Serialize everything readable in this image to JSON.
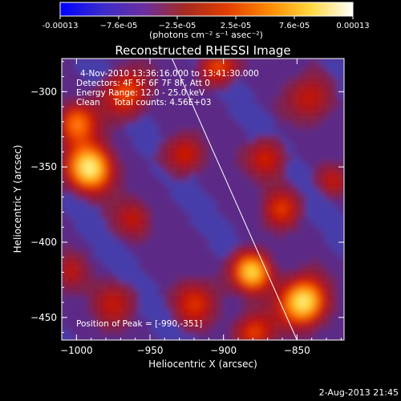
{
  "chart_data": {
    "type": "heatmap",
    "title": "Reconstructed RHESSI Image",
    "colorbar": {
      "tick_labels": [
        "-0.00013",
        "−7.6e-05",
        "−2.5e-05",
        "2.5e-05",
        "7.6e-05",
        "0.00013"
      ],
      "unit_label": "(photons cm⁻² s⁻¹ asec⁻²)",
      "range": [
        -0.00013,
        0.00013
      ],
      "colors": [
        "#0000ff",
        "#3a2ccc",
        "#6a2fa0",
        "#a52a20",
        "#e23e00",
        "#ff8a00",
        "#ffd840",
        "#ffffff"
      ]
    },
    "annotation_lines": [
      "4-Nov-2010 13:36:16.000 to 13:41:30.000",
      "Detectors: 4F 5F 6F 7F 8F, Att 0",
      "Energy Range: 12.0 - 25.0 keV",
      "Clean     Total counts: 4.56E+03"
    ],
    "peak_label": "Position of Peak = [-990,-351]",
    "xlabel": "Heliocentric X (arcsec)",
    "ylabel": "Heliocentric Y (arcsec)",
    "xlim": [
      -1010,
      -818
    ],
    "ylim": [
      -465,
      -278
    ],
    "x_ticks": [
      -1000,
      -950,
      -900,
      -850
    ],
    "y_ticks": [
      -300,
      -350,
      -400,
      -450
    ],
    "x_tick_labels": [
      "−1000",
      "−950",
      "−900",
      "−850"
    ],
    "y_tick_labels": [
      "−300",
      "−350",
      "−400",
      "−450"
    ],
    "limb_line": [
      [
        -935,
        -278
      ],
      [
        -850,
        -465
      ]
    ],
    "sources": [
      {
        "x": -990,
        "y": -351,
        "amp": 1.0,
        "sigma": 12
      },
      {
        "x": -1000,
        "y": -320,
        "amp": 0.75,
        "sigma": 10
      },
      {
        "x": -965,
        "y": -300,
        "amp": 0.6,
        "sigma": 12
      },
      {
        "x": -905,
        "y": -283,
        "amp": 0.6,
        "sigma": 10
      },
      {
        "x": -925,
        "y": -342,
        "amp": 0.55,
        "sigma": 10
      },
      {
        "x": -960,
        "y": -385,
        "amp": 0.45,
        "sigma": 10
      },
      {
        "x": -870,
        "y": -345,
        "amp": 0.55,
        "sigma": 10
      },
      {
        "x": -840,
        "y": -305,
        "amp": 0.5,
        "sigma": 12
      },
      {
        "x": -860,
        "y": -378,
        "amp": 0.5,
        "sigma": 10
      },
      {
        "x": -880,
        "y": -420,
        "amp": 0.9,
        "sigma": 10
      },
      {
        "x": -845,
        "y": -440,
        "amp": 1.0,
        "sigma": 12
      },
      {
        "x": -920,
        "y": -440,
        "amp": 0.5,
        "sigma": 12
      },
      {
        "x": -975,
        "y": -440,
        "amp": 0.4,
        "sigma": 12
      },
      {
        "x": -880,
        "y": -460,
        "amp": 0.6,
        "sigma": 10
      },
      {
        "x": -1005,
        "y": -420,
        "amp": 0.35,
        "sigma": 10
      },
      {
        "x": -825,
        "y": -360,
        "amp": 0.45,
        "sigma": 8
      }
    ],
    "grid": false
  },
  "footer": {
    "timestamp": "2-Aug-2013 21:45"
  }
}
